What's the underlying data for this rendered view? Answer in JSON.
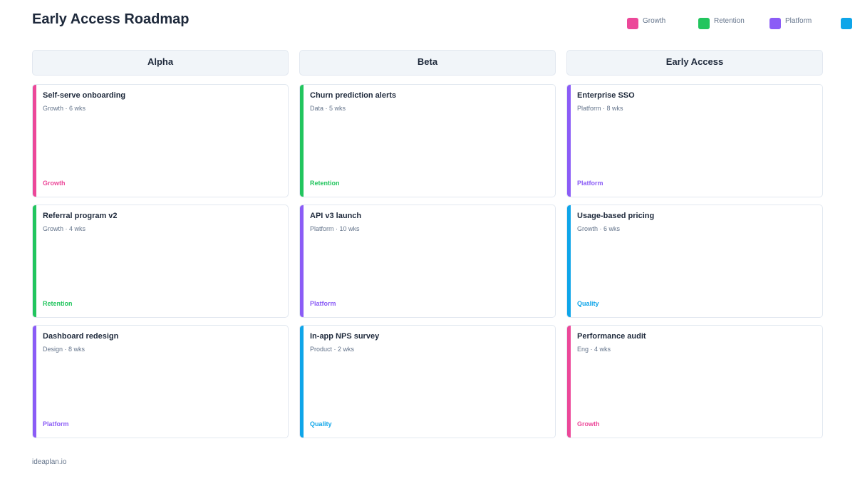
{
  "title": "Early Access Roadmap",
  "colors": {
    "Growth": "#ec4899",
    "Retention": "#22c55e",
    "Platform": "#8b5cf6",
    "Quality": "#0ea5e9"
  },
  "legend": [
    {
      "label": "Growth",
      "color": "#ec4899"
    },
    {
      "label": "Retention",
      "color": "#22c55e"
    },
    {
      "label": "Platform",
      "color": "#8b5cf6"
    },
    {
      "label": "",
      "color": "#0ea5e9"
    }
  ],
  "columns": [
    {
      "name": "Alpha",
      "cards": [
        {
          "title": "Self-serve onboarding",
          "meta": "Growth · 6 wks",
          "tag": "Growth"
        },
        {
          "title": "Referral program v2",
          "meta": "Growth · 4 wks",
          "tag": "Retention"
        },
        {
          "title": "Dashboard redesign",
          "meta": "Design · 8 wks",
          "tag": "Platform"
        }
      ]
    },
    {
      "name": "Beta",
      "cards": [
        {
          "title": "Churn prediction alerts",
          "meta": "Data · 5 wks",
          "tag": "Retention"
        },
        {
          "title": "API v3 launch",
          "meta": "Platform · 10 wks",
          "tag": "Platform"
        },
        {
          "title": "In-app NPS survey",
          "meta": "Product · 2 wks",
          "tag": "Quality"
        }
      ]
    },
    {
      "name": "Early Access",
      "cards": [
        {
          "title": "Enterprise SSO",
          "meta": "Platform · 8 wks",
          "tag": "Platform"
        },
        {
          "title": "Usage-based pricing",
          "meta": "Growth · 6 wks",
          "tag": "Quality"
        },
        {
          "title": "Performance audit",
          "meta": "Eng · 4 wks",
          "tag": "Growth"
        }
      ]
    }
  ],
  "footer": "ideaplan.io"
}
